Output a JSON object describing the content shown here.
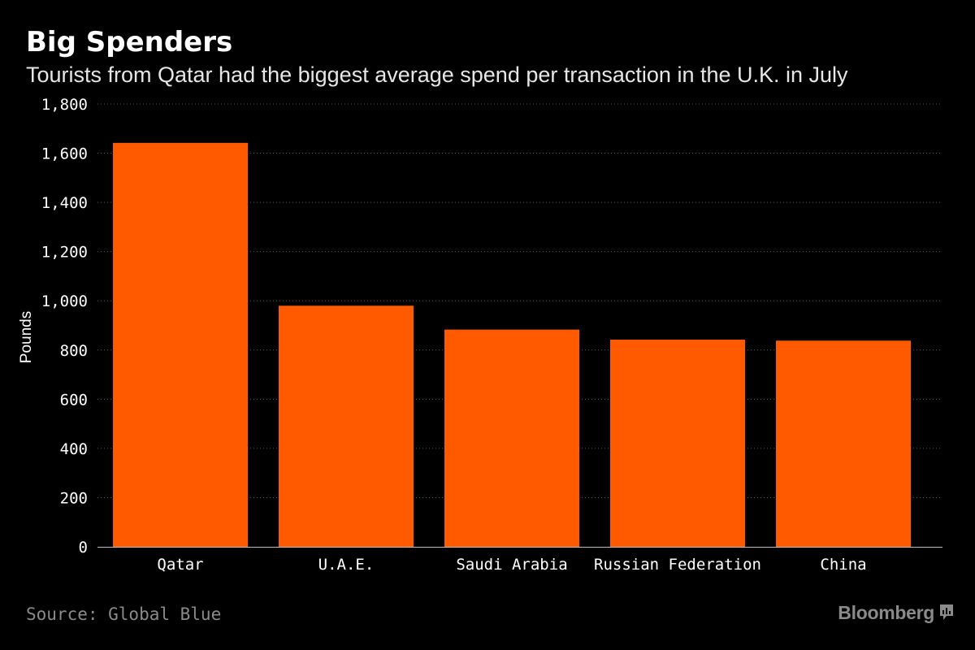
{
  "header": {
    "title": "Big Spenders",
    "subtitle": "Tourists from Qatar had the biggest average spend per transaction in the U.K. in July"
  },
  "footer": {
    "source": "Source: Global Blue",
    "brand": "Bloomberg",
    "brand_icon": "bloomberg-chat-icon"
  },
  "colors": {
    "background": "#000000",
    "bar": "#ff5a00",
    "grid": "#5a5a5a",
    "axis_text": "#ffffff",
    "muted_text": "#8a8a8a"
  },
  "chart_data": {
    "type": "bar",
    "categories": [
      "Qatar",
      "U.A.E.",
      "Saudi Arabia",
      "Russian Federation",
      "China"
    ],
    "values": [
      1642,
      980,
      883,
      842,
      838
    ],
    "ylabel": "Pounds",
    "xlabel": "",
    "ylim": [
      0,
      1800
    ],
    "yticks": [
      0,
      200,
      400,
      600,
      800,
      1000,
      1200,
      1400,
      1600,
      1800
    ],
    "ytick_labels": [
      "0",
      "200",
      "400",
      "600",
      "800",
      "1,000",
      "1,200",
      "1,400",
      "1,600",
      "1,800"
    ],
    "grid": true,
    "legend": "none"
  }
}
